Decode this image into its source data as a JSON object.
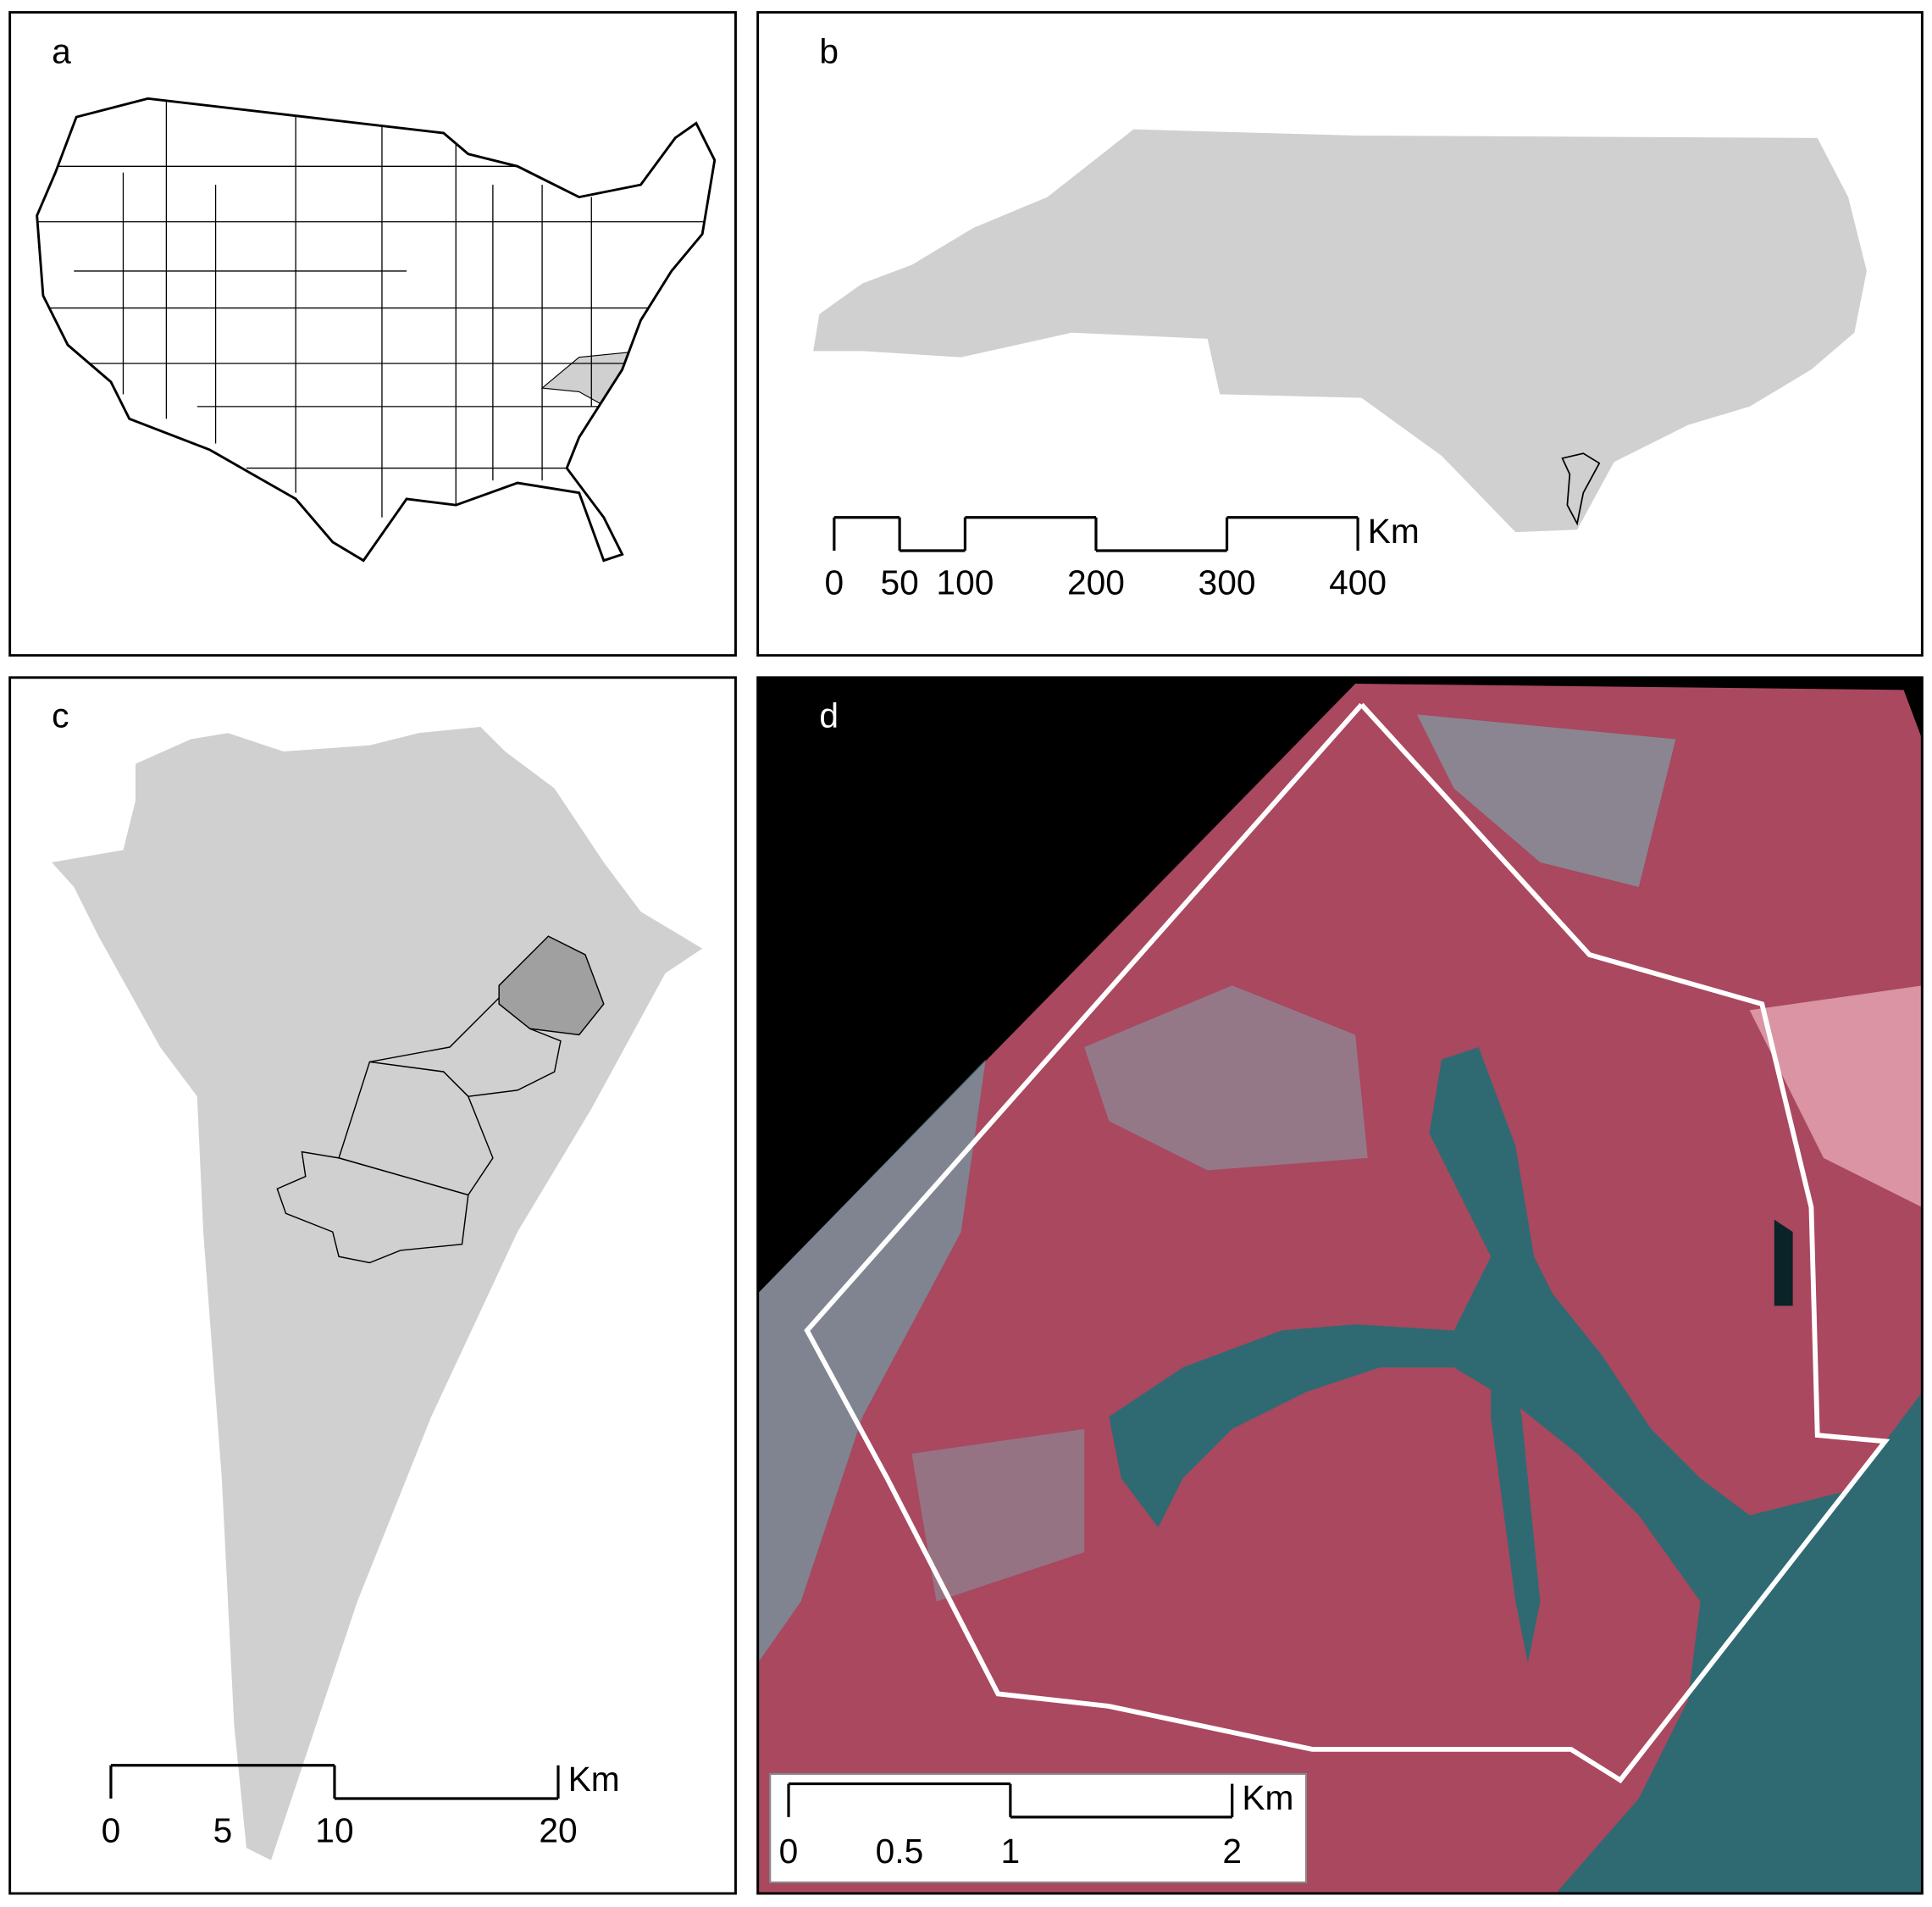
{
  "panels": [
    {
      "label": "a"
    },
    {
      "label": "b",
      "scale_bar": {
        "ticks": [
          0,
          50,
          100,
          200,
          300,
          400
        ],
        "unit": "Km"
      }
    },
    {
      "label": "c",
      "scale_bar": {
        "ticks": [
          0,
          5,
          10,
          20
        ],
        "unit": "Km"
      }
    },
    {
      "label": "d",
      "scale_bar": {
        "ticks": [
          0,
          0.5,
          1,
          2
        ],
        "unit": "Km"
      }
    }
  ]
}
